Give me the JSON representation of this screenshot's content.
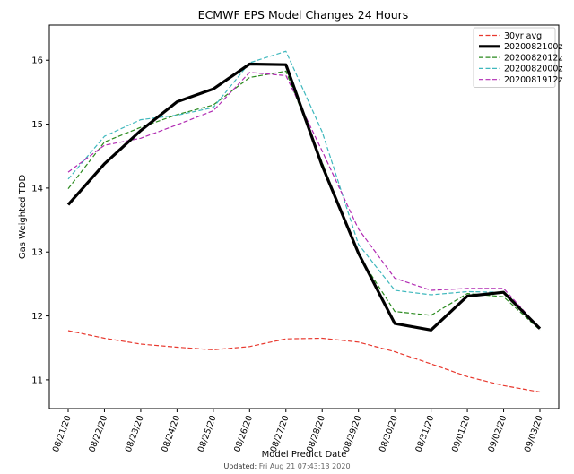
{
  "chart_data": {
    "type": "line",
    "title": "ECMWF EPS Model Changes 24 Hours",
    "xlabel": "Model Predict Date",
    "ylabel": "Gas Weighted TDD",
    "ylim": [
      10.55,
      16.55
    ],
    "yticks": [
      11,
      12,
      13,
      14,
      15,
      16
    ],
    "grid": false,
    "legend_position": "top-right",
    "categories": [
      "08/21/20",
      "08/22/20",
      "08/23/20",
      "08/24/20",
      "08/25/20",
      "08/26/20",
      "08/27/20",
      "08/28/20",
      "08/29/20",
      "08/30/20",
      "08/31/20",
      "09/01/20",
      "09/02/20",
      "09/03/20"
    ],
    "series": [
      {
        "name": "30yr avg",
        "color": "#e8382e",
        "style": "dashed",
        "width": 1.2,
        "values": [
          11.77,
          11.65,
          11.56,
          11.51,
          11.47,
          11.52,
          11.64,
          11.65,
          11.59,
          11.44,
          11.25,
          11.05,
          10.91,
          10.81
        ]
      },
      {
        "name": "2020082100z",
        "color": "#000000",
        "style": "solid",
        "width": 3.2,
        "values": [
          13.74,
          14.38,
          14.9,
          15.35,
          15.55,
          15.94,
          15.93,
          14.35,
          12.98,
          11.88,
          11.78,
          12.31,
          12.37,
          11.8
        ]
      },
      {
        "name": "2020082012z",
        "color": "#2a8a1e",
        "style": "dashed",
        "width": 1.2,
        "values": [
          13.99,
          14.72,
          14.95,
          15.15,
          15.3,
          15.73,
          15.83,
          14.4,
          12.95,
          12.07,
          12.01,
          12.35,
          12.3,
          11.78
        ]
      },
      {
        "name": "2020082000z",
        "color": "#3fb8bd",
        "style": "dashed",
        "width": 1.2,
        "values": [
          14.14,
          14.81,
          15.07,
          15.14,
          15.26,
          15.96,
          16.14,
          14.88,
          13.12,
          12.4,
          12.33,
          12.38,
          12.37,
          11.8
        ]
      },
      {
        "name": "2020081912z",
        "color": "#b12bb3",
        "style": "dashed",
        "width": 1.2,
        "values": [
          14.25,
          14.67,
          14.78,
          14.99,
          15.21,
          15.81,
          15.76,
          14.58,
          13.36,
          12.59,
          12.4,
          12.43,
          12.43,
          11.8
        ]
      }
    ]
  },
  "footer": {
    "label": "Updated:",
    "timestamp": "Fri Aug 21 07:43:13 2020"
  }
}
